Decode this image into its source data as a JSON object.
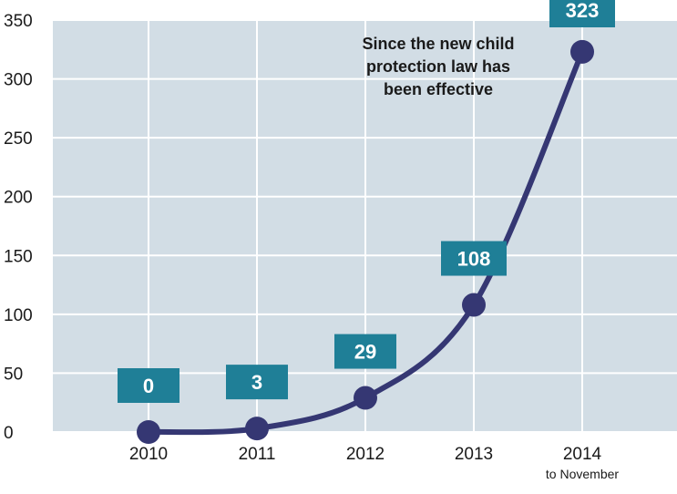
{
  "chart_data": {
    "type": "line",
    "categories": [
      "2010",
      "2011",
      "2012",
      "2013",
      "2014"
    ],
    "category_sublabels": [
      "",
      "",
      "",
      "",
      "to November"
    ],
    "values": [
      0,
      3,
      29,
      108,
      323
    ],
    "data_labels": [
      "0",
      "3",
      "29",
      "108",
      "323"
    ],
    "annotation": [
      "Since the new child",
      "protection law has",
      "been effective"
    ],
    "ylim": [
      0,
      350
    ],
    "yticks": [
      0,
      50,
      100,
      150,
      200,
      250,
      300,
      350
    ],
    "ytick_labels": [
      "0",
      "50",
      "100",
      "150",
      "200",
      "250",
      "300",
      "350"
    ],
    "grid": true,
    "title": "",
    "xlabel": "",
    "ylabel": ""
  },
  "colors": {
    "plot_background": "#d2dde5",
    "grid": "#ffffff",
    "line": "#353773",
    "label_box": "#1f7f97",
    "label_text": "#ffffff"
  }
}
